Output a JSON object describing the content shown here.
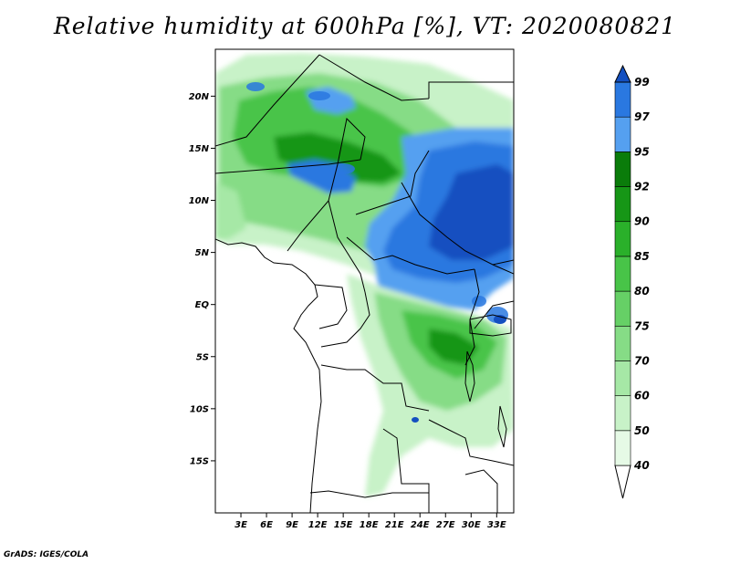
{
  "title": "Relative humidity at 600hPa [%], VT: 2020080821",
  "credit": "GrADS: IGES/COLA",
  "map": {
    "lat_labels": [
      "20N",
      "15N",
      "10N",
      "5N",
      "EQ",
      "5S",
      "10S",
      "15S"
    ],
    "lon_labels": [
      "3E",
      "6E",
      "9E",
      "12E",
      "15E",
      "18E",
      "21E",
      "24E",
      "27E",
      "30E",
      "33E"
    ],
    "lon_range": [
      0,
      35
    ],
    "lat_range": [
      -20,
      24.5
    ]
  },
  "colorbar": {
    "levels": [
      "40",
      "50",
      "60",
      "70",
      "75",
      "80",
      "85",
      "90",
      "92",
      "95",
      "97",
      "99"
    ],
    "colors": [
      "#ffffff",
      "#e6fae6",
      "#c8f2c8",
      "#a6e8a6",
      "#86dc86",
      "#66d066",
      "#48c448",
      "#2ab02a",
      "#169616",
      "#0a7c0a",
      "#55a0f0",
      "#2a78e0",
      "#1450c0"
    ]
  }
}
